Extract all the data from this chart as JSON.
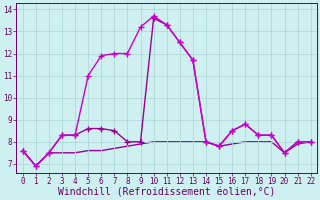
{
  "xlabel": "Windchill (Refroidissement éolien,°C)",
  "ylabel": "",
  "bg_color": "#cff0f0",
  "grid_color": "#b0d8d8",
  "line_color1": "#cc00cc",
  "line_color2": "#990099",
  "xlim": [
    -0.5,
    22.5
  ],
  "ylim": [
    6.6,
    14.3
  ],
  "xticks": [
    0,
    1,
    2,
    3,
    4,
    5,
    6,
    7,
    8,
    9,
    10,
    11,
    12,
    13,
    14,
    15,
    16,
    17,
    18,
    19,
    20,
    21,
    22
  ],
  "yticks": [
    7,
    8,
    9,
    10,
    11,
    12,
    13,
    14
  ],
  "series1_x": [
    0,
    1,
    2,
    3,
    4,
    5,
    6,
    7,
    8,
    9,
    10,
    11,
    12,
    13,
    14,
    15,
    16,
    17,
    18,
    19,
    20,
    21,
    22
  ],
  "series1_y": [
    7.6,
    6.9,
    7.5,
    8.3,
    8.3,
    11.0,
    11.9,
    12.0,
    12.0,
    13.2,
    13.7,
    13.3,
    12.5,
    11.7,
    8.0,
    7.8,
    8.5,
    8.8,
    8.3,
    8.3,
    7.5,
    8.0,
    8.0
  ],
  "series2_x": [
    0,
    1,
    2,
    3,
    4,
    5,
    6,
    7,
    8,
    9,
    10,
    11,
    12,
    13,
    14,
    15,
    16,
    17,
    18,
    19,
    20,
    21,
    22
  ],
  "series2_y": [
    7.6,
    6.9,
    7.5,
    8.3,
    8.3,
    8.6,
    8.6,
    8.5,
    8.0,
    8.0,
    13.6,
    13.3,
    12.5,
    11.7,
    8.0,
    7.8,
    8.5,
    8.8,
    8.3,
    8.3,
    7.5,
    8.0,
    8.0
  ],
  "series3_x": [
    0,
    1,
    2,
    3,
    4,
    5,
    6,
    7,
    8,
    9,
    10,
    11,
    12,
    13,
    14,
    15,
    16,
    17,
    18,
    19,
    20,
    21,
    22
  ],
  "series3_y": [
    7.6,
    6.9,
    7.5,
    7.5,
    7.5,
    7.6,
    7.6,
    7.7,
    7.8,
    7.9,
    8.0,
    8.0,
    8.0,
    8.0,
    8.0,
    7.8,
    7.9,
    8.0,
    8.0,
    8.0,
    7.5,
    7.9,
    8.0
  ],
  "marker_size": 4,
  "line_width": 1.0,
  "tick_fontsize": 5.5,
  "label_fontsize": 7.0
}
